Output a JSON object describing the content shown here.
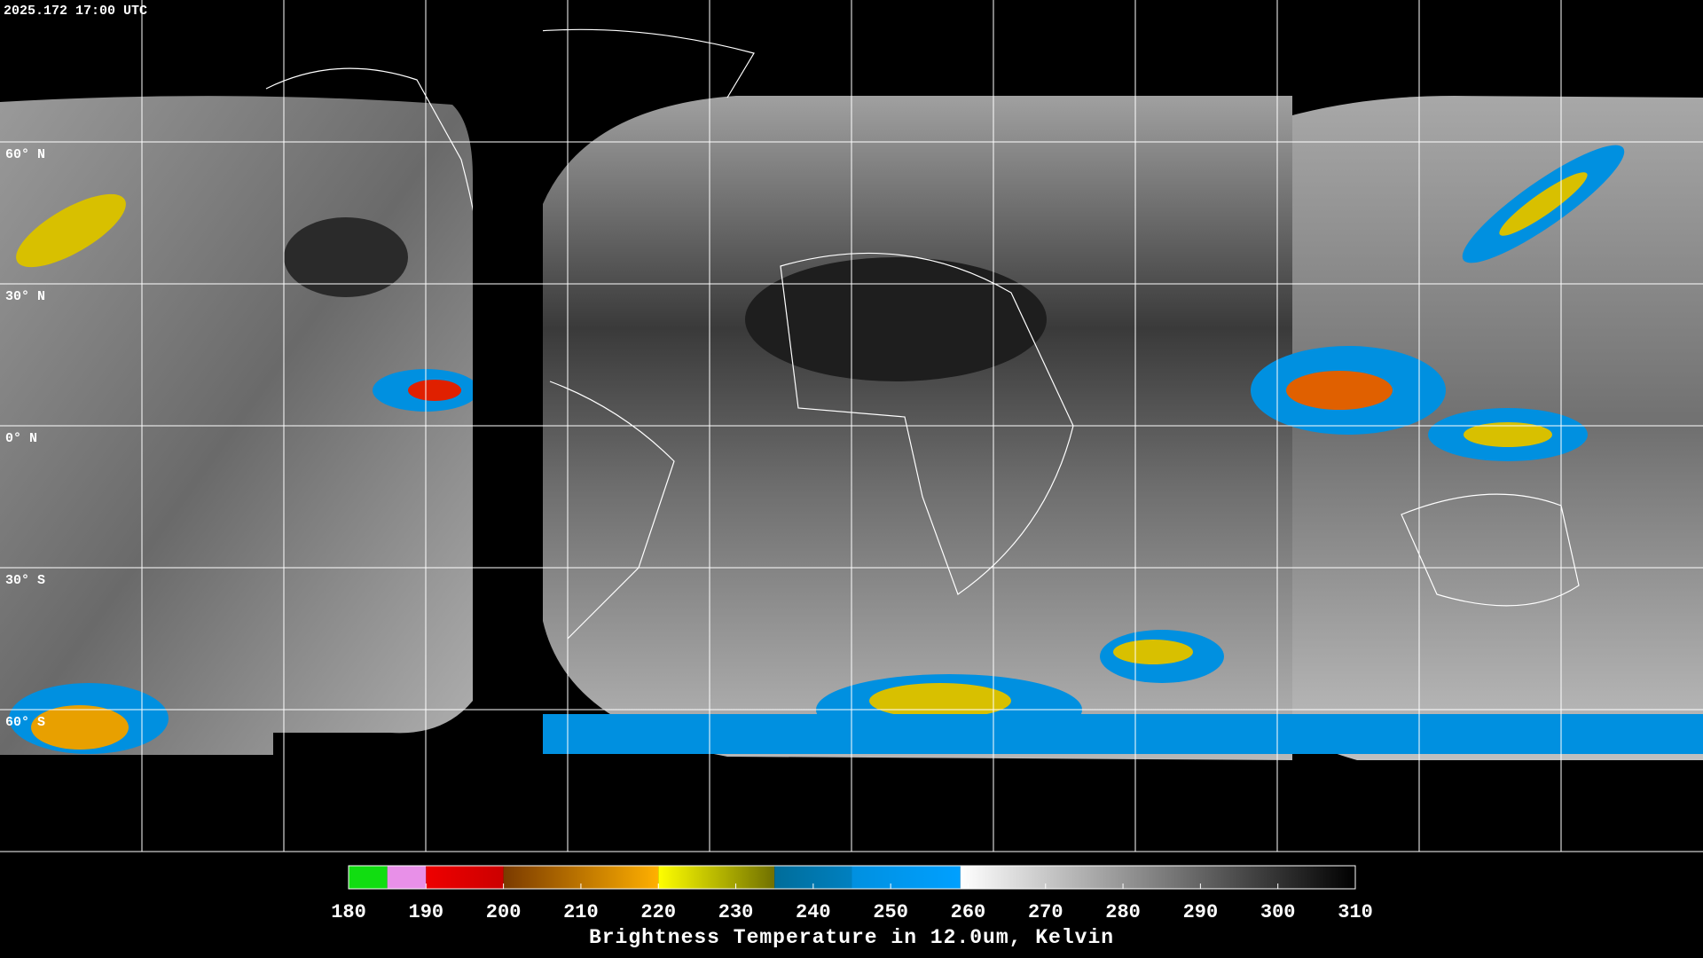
{
  "header": {
    "timestamp": "2025.172 17:00 UTC"
  },
  "map": {
    "lat_lines": [
      {
        "value": 60,
        "label": "60° N"
      },
      {
        "value": 30,
        "label": "30° N"
      },
      {
        "value": 0,
        "label": "0° N"
      },
      {
        "value": -30,
        "label": "30° S"
      },
      {
        "value": -60,
        "label": "60° S"
      }
    ]
  },
  "colorbar": {
    "title": "Brightness Temperature in 12.0um, Kelvin",
    "lim": [
      180,
      310
    ],
    "ticks": [
      180,
      190,
      200,
      210,
      220,
      230,
      240,
      250,
      260,
      270,
      280,
      290,
      300,
      310
    ],
    "segments": [
      {
        "from": 180,
        "to": 185,
        "colors": [
          "#11dd11",
          "#11dd11"
        ]
      },
      {
        "from": 185,
        "to": 190,
        "colors": [
          "#e890e8",
          "#e890e8"
        ]
      },
      {
        "from": 190,
        "to": 200,
        "colors": [
          "#ee0000",
          "#cc0000"
        ]
      },
      {
        "from": 200,
        "to": 220,
        "colors": [
          "#7a3a00",
          "#ffb000"
        ]
      },
      {
        "from": 220,
        "to": 235,
        "colors": [
          "#ffff00",
          "#707000"
        ]
      },
      {
        "from": 235,
        "to": 245,
        "colors": [
          "#006d9a",
          "#0080c0"
        ]
      },
      {
        "from": 245,
        "to": 259,
        "colors": [
          "#0090e0",
          "#00a0ff"
        ]
      },
      {
        "from": 259,
        "to": 310,
        "colors": [
          "#ffffff",
          "#000000"
        ]
      }
    ]
  }
}
